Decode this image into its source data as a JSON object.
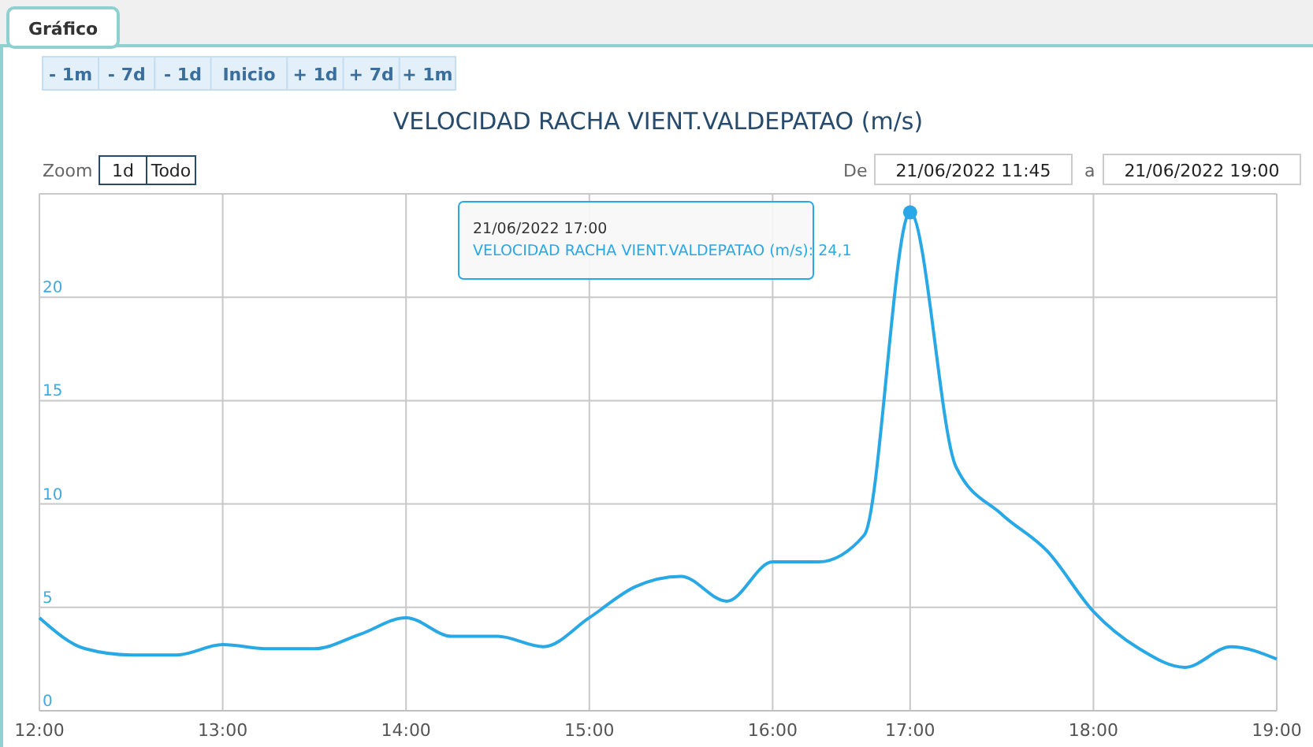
{
  "chart_data": {
    "type": "line",
    "title": "VELOCIDAD RACHA VIENT.VALDEPATAO (m/s)",
    "categories": [
      "12:00",
      null,
      null,
      null,
      "13:00",
      null,
      null,
      null,
      "14:00",
      null,
      null,
      null,
      "15:00",
      null,
      null,
      null,
      "16:00",
      null,
      null,
      "17:00",
      null,
      null,
      null,
      "18:00",
      null,
      null,
      null,
      "19:00"
    ],
    "series": [
      {
        "type": "scatter",
        "color": "#29a8e6",
        "x": [
          "17:00"
        ],
        "values": [
          24.1
        ],
        "marker": "circle"
      },
      {
        "color": "#29a8e6",
        "values": [
          4.5,
          3.0,
          2.7,
          2.7,
          3.2,
          3.0,
          3.0,
          3.7,
          4.5,
          3.6,
          3.6,
          3.1,
          4.5,
          6.0,
          6.5,
          5.3,
          7.2,
          7.2,
          8.5,
          24.1,
          11.8,
          9.5,
          7.7,
          4.8,
          3.0,
          2.1,
          3.1,
          2.5
        ]
      }
    ],
    "ylim": [
      0,
      25
    ],
    "yticks": [
      0,
      5,
      10,
      15,
      20
    ],
    "grid": true,
    "marker": "none",
    "line_style": "solid",
    "annotations": [
      "21/06/2022 17:00",
      "VELOCIDAD RACHA VIENT.VALDEPATAO (m/s): 24,1",
      "Gráfico",
      "- 1m",
      "- 7d",
      "- 1d",
      "Inicio",
      "+ 1d",
      "+ 7d",
      "+ 1m",
      "Zoom",
      "1d",
      "Todo",
      "De",
      "21/06/2022 11:45",
      "a",
      "21/06/2022 19:00"
    ]
  }
}
